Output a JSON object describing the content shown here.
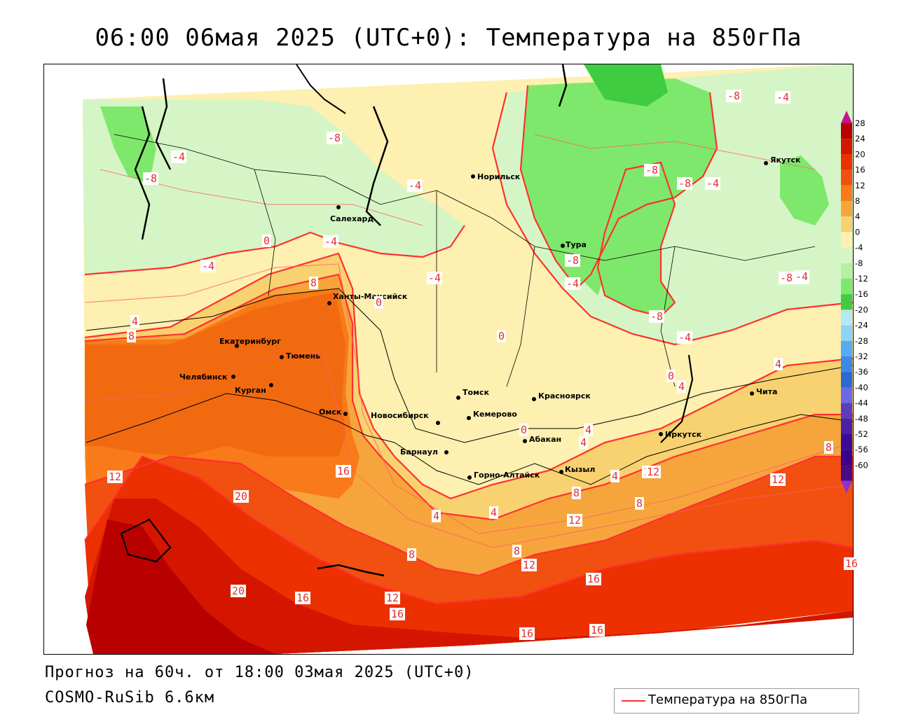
{
  "title": "06:00 06мая 2025 (UTC+0): Температура на 850гПа",
  "footer": {
    "forecast": "Прогноз на 60ч. от 18:00 03мая 2025 (UTC+0)",
    "model": "COSMO-RuSib 6.6км"
  },
  "legend": {
    "label": "Температура на 850гПа",
    "color": "#ff3030"
  },
  "scale": {
    "colors": [
      "#b80000",
      "#d41600",
      "#ec3000",
      "#f25010",
      "#f87a18",
      "#f6a53c",
      "#f8d270",
      "#fdf0b0",
      "#d6f5c6",
      "#b4f0a4",
      "#7ee86c",
      "#40cc40",
      "#b4e8f4",
      "#8cd4f6",
      "#58aaf2",
      "#3c8ae8",
      "#2c68d8",
      "#6a6ae8",
      "#5c3cc0",
      "#4a20a8",
      "#3a0c96",
      "#3a0090",
      "#4a0a86"
    ],
    "labels": [
      "28",
      "24",
      "20",
      "16",
      "12",
      "8",
      "4",
      "0",
      "-4",
      "-8",
      "-12",
      "-16",
      "-20",
      "-24",
      "-28",
      "-32",
      "-36",
      "-40",
      "-44",
      "-48",
      "-52",
      "-56",
      "-60"
    ],
    "top_arrow_color": "#c8108c",
    "bottom_arrow_color": "#8c30d4"
  },
  "cities": [
    {
      "name": "Норильск"
    },
    {
      "name": "Якутск"
    },
    {
      "name": "Салехард"
    },
    {
      "name": "Тура"
    },
    {
      "name": "Ханты-Мансийск"
    },
    {
      "name": "Екатеринбург"
    },
    {
      "name": "Тюмень"
    },
    {
      "name": "Челябинск"
    },
    {
      "name": "Курган"
    },
    {
      "name": "Омск"
    },
    {
      "name": "Томск"
    },
    {
      "name": "Красноярск"
    },
    {
      "name": "Чита"
    },
    {
      "name": "Новосибирск"
    },
    {
      "name": "Кемерово"
    },
    {
      "name": "Иркутск"
    },
    {
      "name": "Абакан"
    },
    {
      "name": "Барнаул"
    },
    {
      "name": "Кызыл"
    },
    {
      "name": "Горно-Алтайск"
    }
  ],
  "isotherm_labels": [
    "-8",
    "-4",
    "-4",
    "-8",
    "-8",
    "-8",
    "-4",
    "-8",
    "-4",
    "-8",
    "-4",
    "0",
    "-4",
    "-4",
    "8",
    "0",
    "-4",
    "0",
    "4",
    "8",
    "-8",
    "-8",
    "-4",
    "-4",
    "-4",
    "0",
    "4",
    "4",
    "8",
    "0",
    "4",
    "4",
    "8",
    "4",
    "12",
    "12",
    "16",
    "20",
    "12",
    "8",
    "8",
    "4",
    "4",
    "12",
    "8",
    "12",
    "12",
    "16",
    "16",
    "20",
    "16",
    "12",
    "16",
    "16",
    "16"
  ]
}
